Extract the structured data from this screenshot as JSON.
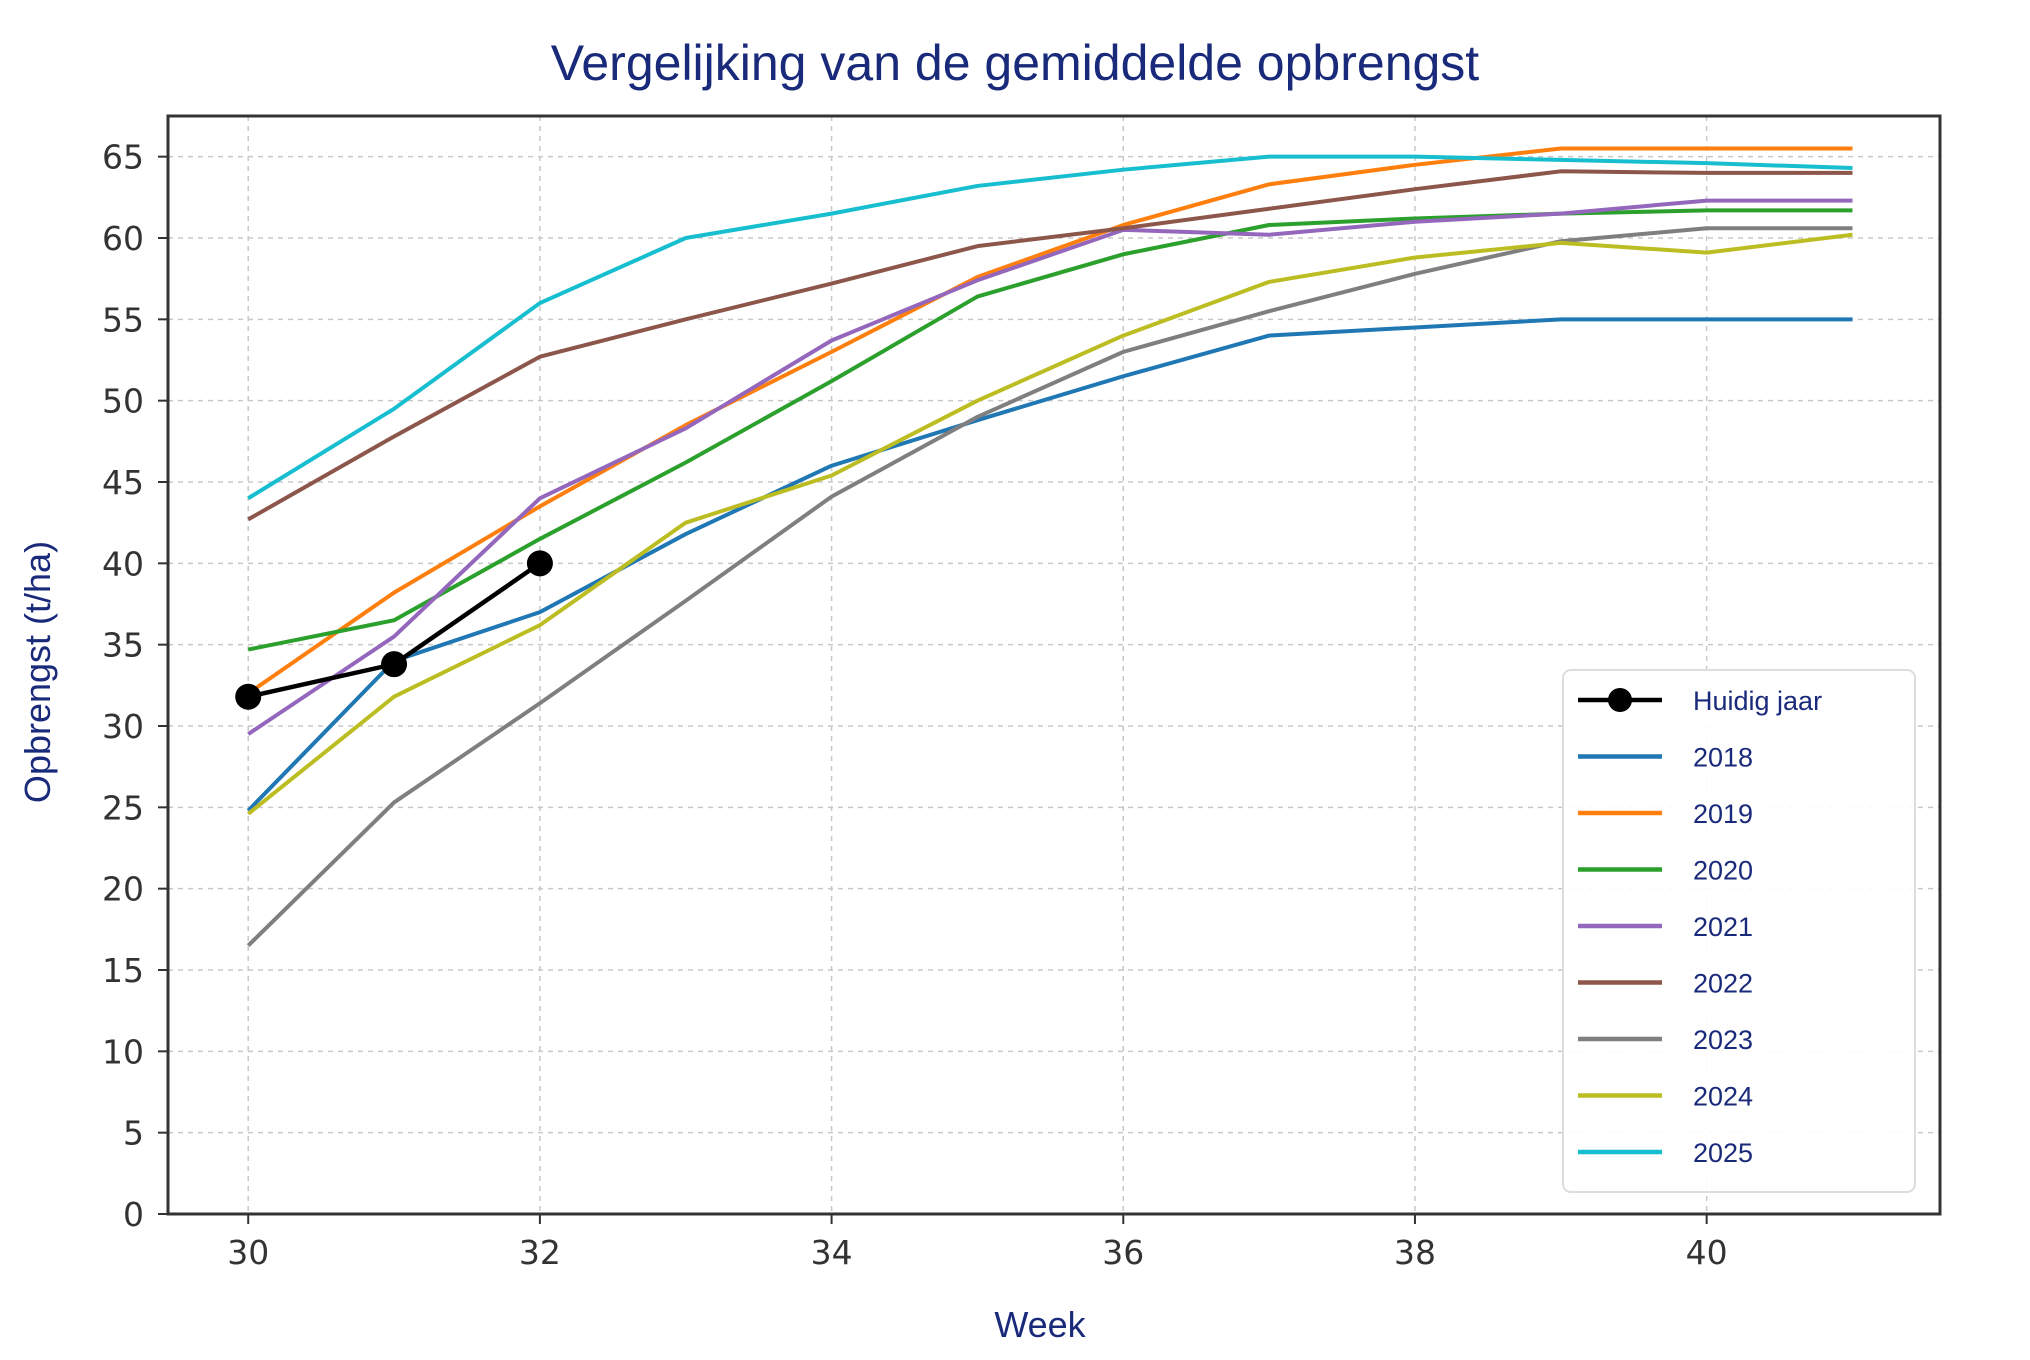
{
  "chart_data": {
    "type": "line",
    "title": "Vergelijking van de gemiddelde opbrengst",
    "xlabel": "Week",
    "ylabel": "Opbrengst (t/ha)",
    "xlim": [
      29.45,
      41.6
    ],
    "ylim": [
      0,
      67.5
    ],
    "xticks": [
      30,
      32,
      34,
      36,
      38,
      40
    ],
    "yticks": [
      0,
      5,
      10,
      15,
      20,
      25,
      30,
      35,
      40,
      45,
      50,
      55,
      60,
      65
    ],
    "grid": true,
    "legend_position": "lower-right",
    "x": [
      30,
      31,
      32,
      33,
      34,
      35,
      36,
      37,
      38,
      39,
      40,
      41
    ],
    "series": [
      {
        "name": "Huidig jaar",
        "color": "#000000",
        "marker": "circle",
        "x": [
          30,
          31,
          32
        ],
        "values": [
          31.8,
          33.8,
          40.0
        ]
      },
      {
        "name": "2018",
        "color": "#1f77b4",
        "values": [
          24.8,
          34.0,
          37.0,
          41.8,
          46.0,
          48.8,
          51.5,
          54.0,
          54.5,
          55.0,
          55.0,
          55.0
        ]
      },
      {
        "name": "2019",
        "color": "#ff7f0e",
        "values": [
          32.0,
          38.2,
          43.5,
          48.5,
          53.0,
          57.6,
          60.8,
          63.3,
          64.5,
          65.5,
          65.5,
          65.5
        ]
      },
      {
        "name": "2020",
        "color": "#2ca02c",
        "values": [
          34.7,
          36.5,
          41.5,
          46.2,
          51.2,
          56.4,
          59.0,
          60.8,
          61.2,
          61.5,
          61.7,
          61.7
        ]
      },
      {
        "name": "2021",
        "color": "#9467bd",
        "values": [
          29.5,
          35.5,
          44.0,
          48.3,
          53.7,
          57.4,
          60.5,
          60.2,
          61.0,
          61.5,
          62.3,
          62.3
        ]
      },
      {
        "name": "2022",
        "color": "#8c564b",
        "values": [
          42.7,
          47.8,
          52.7,
          55.0,
          57.2,
          59.5,
          60.6,
          61.8,
          63.0,
          64.1,
          64.0,
          64.0
        ]
      },
      {
        "name": "2023",
        "color": "#7f7f7f",
        "values": [
          16.5,
          25.3,
          31.4,
          37.7,
          44.1,
          49.0,
          53.0,
          55.5,
          57.8,
          59.8,
          60.6,
          60.6
        ]
      },
      {
        "name": "2024",
        "color": "#bcbd22",
        "values": [
          24.6,
          31.8,
          36.2,
          42.5,
          45.4,
          50.0,
          54.0,
          57.3,
          58.8,
          59.7,
          59.1,
          60.2
        ]
      },
      {
        "name": "2025",
        "color": "#17becf",
        "values": [
          44.0,
          49.5,
          56.0,
          60.0,
          61.5,
          63.2,
          64.2,
          65.0,
          65.0,
          64.8,
          64.6,
          64.3
        ]
      }
    ]
  }
}
